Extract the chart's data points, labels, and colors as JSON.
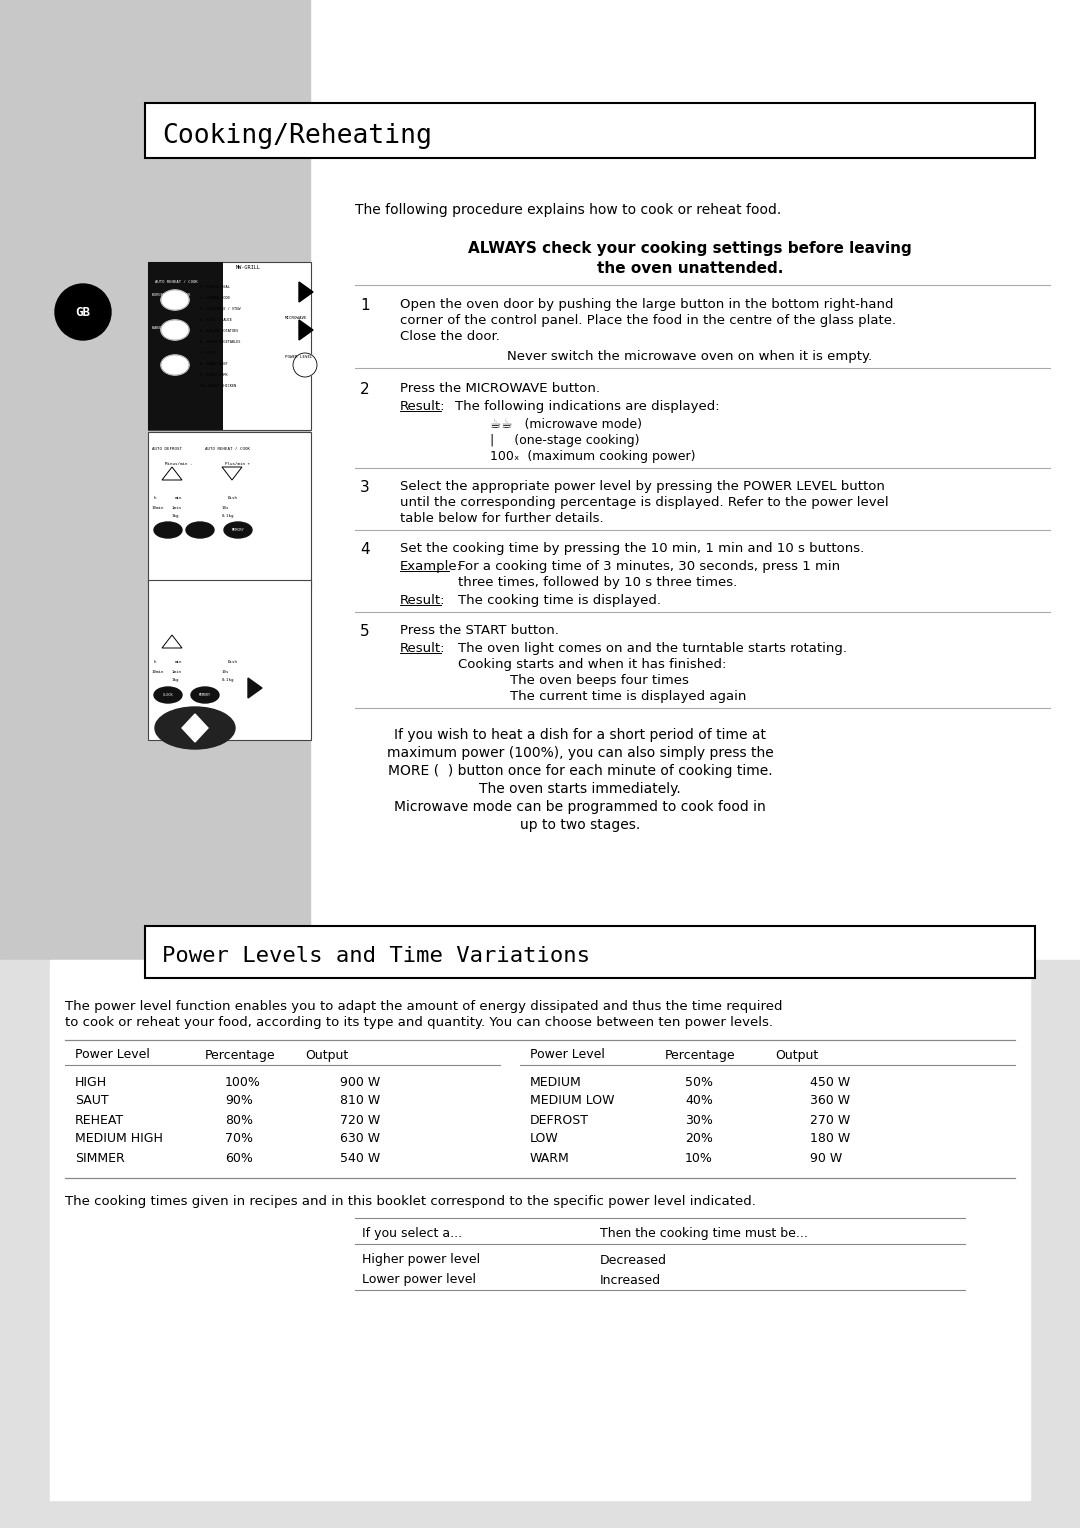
{
  "title1": "Cooking/Reheating",
  "title2": "Power Levels and Time Variations",
  "bg_color": "#ffffff",
  "sidebar_color": "#c8c8c8",
  "sidebar_dark": "#1a1a1a",
  "intro_text": "The following procedure explains how to cook or reheat food.",
  "always_text": "ALWAYS check your cooking settings before leaving\nthe oven unattended.",
  "power_intro_line1": "The power level function enables you to adapt the amount of energy dissipated and thus the time required",
  "power_intro_line2": "to cook or reheat your food, according to its type and quantity. You can choose between ten power levels.",
  "power_table_left": [
    [
      "Power Level",
      "Percentage",
      "Output"
    ],
    [
      "HIGH",
      "100%",
      "900 W"
    ],
    [
      "SAUT",
      "90%",
      "810 W"
    ],
    [
      "REHEAT",
      "80%",
      "720 W"
    ],
    [
      "MEDIUM HIGH",
      "70%",
      "630 W"
    ],
    [
      "SIMMER",
      "60%",
      "540 W"
    ]
  ],
  "power_table_right": [
    [
      "Power Level",
      "Percentage",
      "Output"
    ],
    [
      "MEDIUM",
      "50%",
      "450 W"
    ],
    [
      "MEDIUM LOW",
      "40%",
      "360 W"
    ],
    [
      "DEFROST",
      "30%",
      "270 W"
    ],
    [
      "LOW",
      "20%",
      "180 W"
    ],
    [
      "WARM",
      "10%",
      "90 W"
    ]
  ],
  "cooking_times_text": "The cooking times given in recipes and in this booklet correspond to the specific power level indicated.",
  "select_table": [
    [
      "If you select a...",
      "Then the cooking time must be..."
    ],
    [
      "Higher power level",
      "Decreased"
    ],
    [
      "Lower power level",
      "Increased"
    ]
  ]
}
